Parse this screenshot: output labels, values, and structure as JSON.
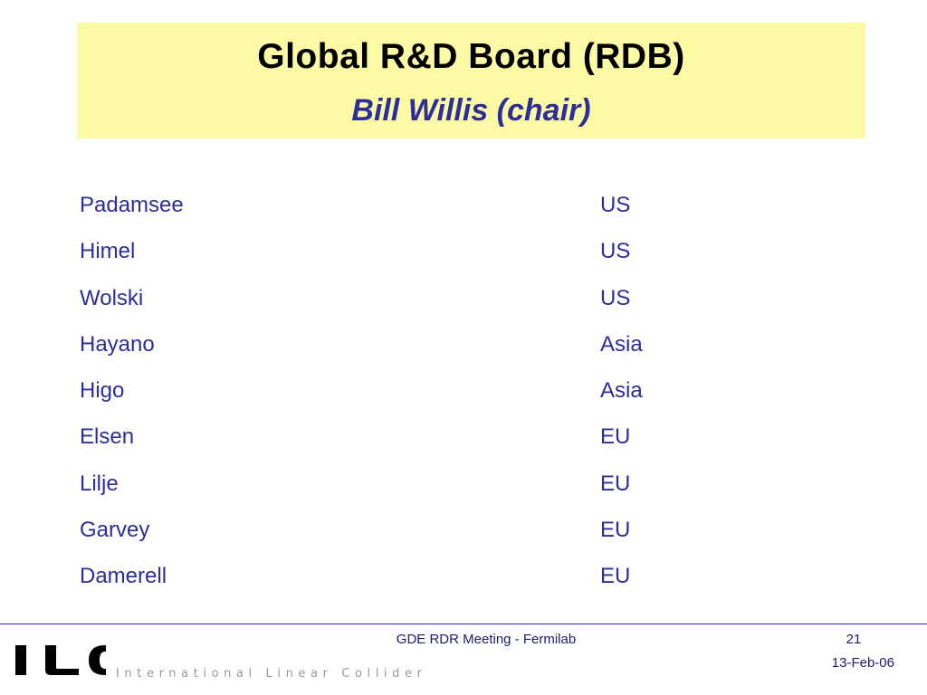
{
  "title": {
    "main": "Global R&D Board (RDB)",
    "sub": "Bill Willis (chair)"
  },
  "members": [
    {
      "name": "Padamsee",
      "region": "US"
    },
    {
      "name": "Himel",
      "region": "US"
    },
    {
      "name": "Wolski",
      "region": "US"
    },
    {
      "name": "Hayano",
      "region": "Asia"
    },
    {
      "name": "Higo",
      "region": "Asia"
    },
    {
      "name": "Elsen",
      "region": "EU"
    },
    {
      "name": "Lilje",
      "region": "EU"
    },
    {
      "name": "Garvey",
      "region": "EU"
    },
    {
      "name": "Damerell",
      "region": "EU"
    }
  ],
  "footer": {
    "meeting": "GDE RDR Meeting - Fermilab",
    "page_number": "21",
    "date": "13-Feb-06"
  },
  "logo": {
    "letters": [
      "I",
      "L",
      "C"
    ],
    "tagline_words": [
      "International",
      "Linear",
      "Collider"
    ]
  },
  "colors": {
    "title_background": "#fdfaa6",
    "accent_blue": "#2e2e9a",
    "logo_black": "#000000",
    "tagline_gray": "#9a9a9a"
  }
}
